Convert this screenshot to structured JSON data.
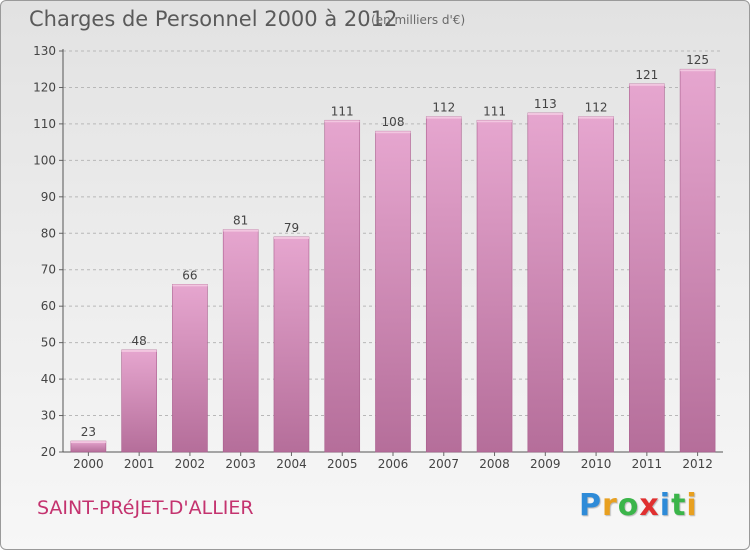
{
  "header": {
    "title": "Charges de Personnel 2000 à 2012",
    "subtitle": "(en milliers d'€)"
  },
  "commune": "SAINT-PRéJET-D'ALLIER",
  "logo": {
    "letters": [
      "P",
      "r",
      "o",
      "x",
      "i",
      "t",
      "i"
    ],
    "colors": [
      "#2e8bd8",
      "#e8a020",
      "#3bb54a",
      "#e03030",
      "#2e8bd8",
      "#3bb54a",
      "#e8a020"
    ]
  },
  "chart_data": {
    "type": "bar",
    "categories": [
      "2000",
      "2001",
      "2002",
      "2003",
      "2004",
      "2005",
      "2006",
      "2007",
      "2008",
      "2009",
      "2010",
      "2011",
      "2012"
    ],
    "values": [
      23,
      48,
      66,
      81,
      79,
      111,
      108,
      112,
      111,
      113,
      112,
      121,
      125
    ],
    "yticks": [
      20,
      30,
      40,
      50,
      60,
      70,
      80,
      90,
      100,
      110,
      120,
      130
    ],
    "ylim": [
      20,
      130
    ],
    "grid": "horizontal dashed",
    "bar_color": "#d98ab8"
  }
}
